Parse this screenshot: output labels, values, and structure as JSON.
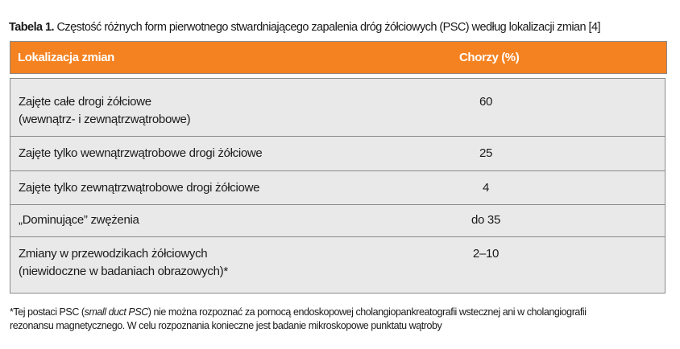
{
  "caption": {
    "label": "Tabela 1.",
    "text": "Częstość różnych form pierwotnego stwardniającego zapalenia dróg żółciowych (PSC) według lokalizacji zmian [4]"
  },
  "header": {
    "col1": "Lokalizacja zmian",
    "col2": "Chorzy (%)"
  },
  "rows": [
    {
      "line1": "Zajęte całe drogi żółciowe",
      "line2": "(wewnątrz- i zewnątrzwątrobowe)",
      "value": "60"
    },
    {
      "line1": "Zajęte tylko wewnątrzwątrobowe drogi żółciowe",
      "line2": "",
      "value": "25"
    },
    {
      "line1": "Zajęte tylko zewnątrzwątrobowe drogi żółciowe",
      "line2": "",
      "value": "4"
    },
    {
      "line1": "„Dominujące” zwężenia",
      "line2": "",
      "value": "do 35"
    },
    {
      "line1": "Zmiany w przewodzikach żółciowych",
      "line2": "(niewidoczne w badaniach obrazowych)*",
      "value": "2–10"
    }
  ],
  "footnote": {
    "part1": "*Tej postaci PSC (",
    "italic": "small duct PSC",
    "part2": ") nie można rozpoznać za pomocą endoskopowej cholangiopankreatografii wstecznej ani w cholangiografii",
    "line2": "rezonansu magnetycznego. W celu rozpoznania konieczne jest badanie mikroskopowe punktatu wątroby"
  }
}
